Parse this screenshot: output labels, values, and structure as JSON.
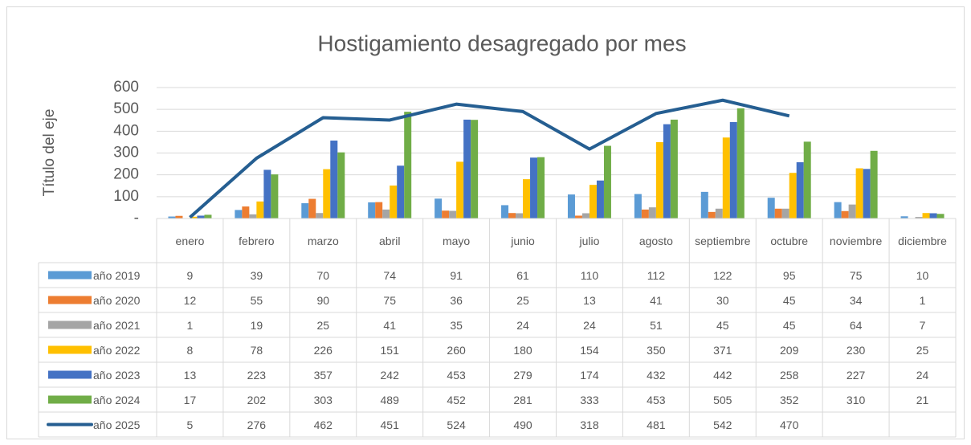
{
  "chart_data": {
    "type": "bar",
    "title": "Hostigamiento desagregado por mes",
    "y_axis_label": "Título del eje",
    "categories": [
      "enero",
      "febrero",
      "marzo",
      "abril",
      "mayo",
      "junio",
      "julio",
      "agosto",
      "septiembre",
      "octubre",
      "noviembre",
      "diciembre"
    ],
    "series": [
      {
        "name": "año 2019",
        "type": "bar",
        "color": "#5b9bd5",
        "values": [
          9,
          39,
          70,
          74,
          91,
          61,
          110,
          112,
          122,
          95,
          75,
          10
        ]
      },
      {
        "name": "año 2020",
        "type": "bar",
        "color": "#ed7d31",
        "values": [
          12,
          55,
          90,
          75,
          36,
          25,
          13,
          41,
          30,
          45,
          34,
          1
        ]
      },
      {
        "name": "año 2021",
        "type": "bar",
        "color": "#a5a5a5",
        "values": [
          1,
          19,
          25,
          41,
          35,
          24,
          24,
          51,
          45,
          45,
          64,
          7
        ]
      },
      {
        "name": "año 2022",
        "type": "bar",
        "color": "#ffc000",
        "values": [
          8,
          78,
          226,
          151,
          260,
          180,
          154,
          350,
          371,
          209,
          230,
          25
        ]
      },
      {
        "name": "año 2023",
        "type": "bar",
        "color": "#4472c4",
        "values": [
          13,
          223,
          357,
          242,
          453,
          279,
          174,
          432,
          442,
          258,
          227,
          24
        ]
      },
      {
        "name": "año 2024",
        "type": "bar",
        "color": "#70ad47",
        "values": [
          17,
          202,
          303,
          489,
          452,
          281,
          333,
          453,
          505,
          352,
          310,
          21
        ]
      },
      {
        "name": "año 2025",
        "type": "line",
        "color": "#255e91",
        "values": [
          5,
          276,
          462,
          451,
          524,
          490,
          318,
          481,
          542,
          470,
          null,
          null
        ]
      }
    ],
    "ylim": [
      0,
      600
    ],
    "yticks": [
      {
        "value": 0,
        "label": "-"
      },
      100,
      200,
      300,
      400,
      500,
      600
    ],
    "grid": true,
    "data_table": true
  }
}
